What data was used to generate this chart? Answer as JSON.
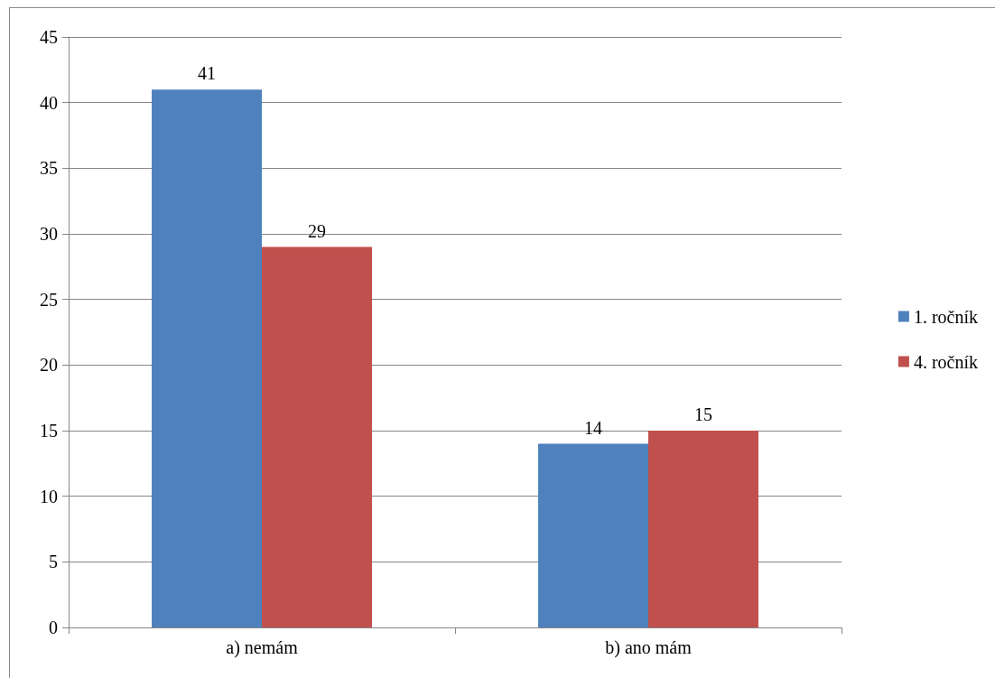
{
  "chart_data": {
    "type": "bar",
    "categories": [
      "a) nemám",
      "b) ano mám"
    ],
    "series": [
      {
        "name": "1. ročník",
        "color": "#4f81bd",
        "values": [
          41,
          14
        ]
      },
      {
        "name": "4. ročník",
        "color": "#c0504d",
        "values": [
          29,
          15
        ]
      }
    ],
    "ylim": [
      0,
      45
    ],
    "yticks": [
      0,
      5,
      10,
      15,
      20,
      25,
      30,
      35,
      40,
      45
    ],
    "grid": "y",
    "legend": "right",
    "data_labels": true
  }
}
